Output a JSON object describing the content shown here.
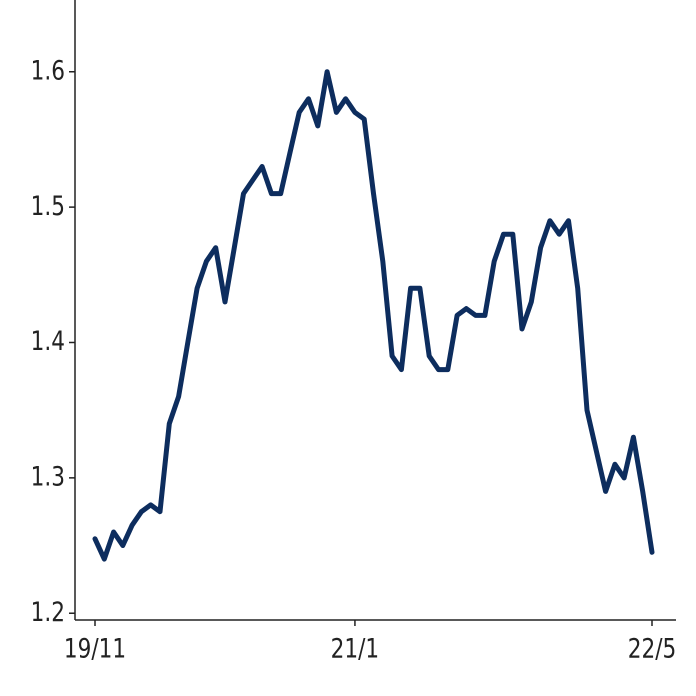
{
  "chart_data": {
    "type": "line",
    "categories": [
      "19/11",
      null,
      null,
      null,
      null,
      null,
      null,
      null,
      null,
      null,
      null,
      null,
      null,
      null,
      null,
      null,
      null,
      null,
      null,
      null,
      null,
      null,
      null,
      null,
      null,
      null,
      null,
      null,
      "21/1",
      null,
      null,
      null,
      null,
      null,
      null,
      null,
      null,
      null,
      null,
      null,
      null,
      null,
      null,
      null,
      null,
      null,
      null,
      null,
      null,
      null,
      null,
      null,
      null,
      null,
      null,
      null,
      null,
      null,
      null,
      null,
      "22/5"
    ],
    "series": [
      {
        "color": "#0d2d5e",
        "values": [
          1.255,
          1.24,
          1.26,
          1.25,
          1.265,
          1.275,
          1.28,
          1.275,
          1.34,
          1.36,
          1.4,
          1.44,
          1.46,
          1.47,
          1.43,
          1.47,
          1.51,
          1.52,
          1.53,
          1.51,
          1.51,
          1.54,
          1.57,
          1.58,
          1.56,
          1.6,
          1.57,
          1.58,
          1.57,
          1.565,
          1.51,
          1.46,
          1.39,
          1.38,
          1.44,
          1.44,
          1.39,
          1.38,
          1.38,
          1.42,
          1.425,
          1.42,
          1.42,
          1.46,
          1.48,
          1.48,
          1.41,
          1.43,
          1.47,
          1.49,
          1.48,
          1.49,
          1.44,
          1.35,
          1.32,
          1.29,
          1.31,
          1.3,
          1.33,
          1.29,
          1.245
        ]
      }
    ],
    "ylim": [
      1.195,
      1.653
    ],
    "yticks": [
      1.2,
      1.3,
      1.4,
      1.5,
      1.6
    ],
    "grid": false
  }
}
